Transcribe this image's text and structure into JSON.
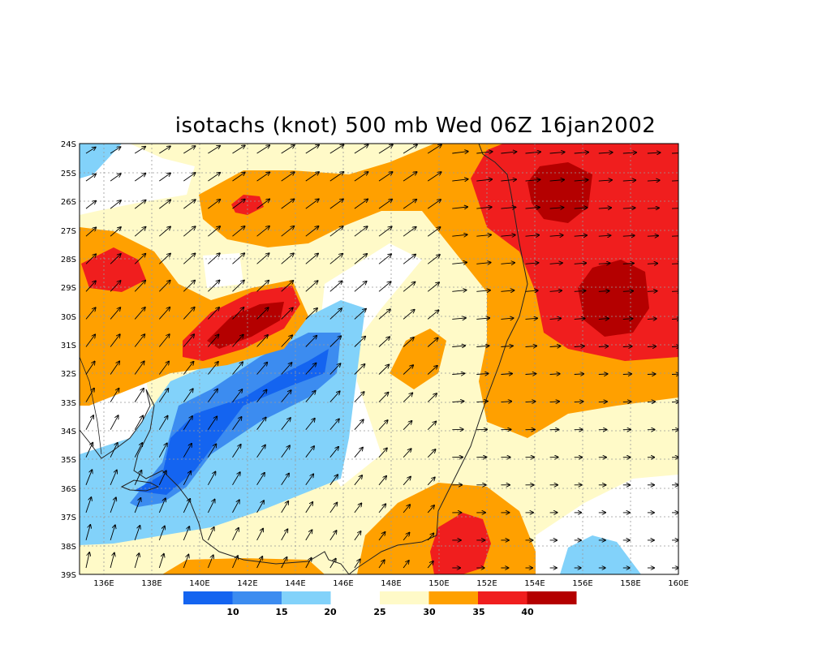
{
  "title": "isotachs (knot) 500 mb Wed 06Z 16jan2002",
  "lat_labels": [
    "24S",
    "25S",
    "26S",
    "27S",
    "28S",
    "29S",
    "30S",
    "31S",
    "32S",
    "33S",
    "34S",
    "35S",
    "36S",
    "37S",
    "38S",
    "39S"
  ],
  "lon_labels": [
    "136E",
    "138E",
    "140E",
    "142E",
    "144E",
    "146E",
    "148E",
    "150E",
    "152E",
    "154E",
    "156E",
    "158E",
    "160E"
  ],
  "colorbar": {
    "colors": [
      "#1464f0",
      "#3c8cf0",
      "#82d2fa",
      "#ffffff",
      "#fffac8",
      "#ffa000",
      "#f01e1e",
      "#b40000"
    ],
    "labels": [
      "10",
      "15",
      "20",
      "25",
      "30",
      "35",
      "40"
    ]
  },
  "palette": {
    "light_blue": "#82d2fa",
    "mid_blue": "#3c8cf0",
    "dark_blue": "#1464f0",
    "white": "#ffffff",
    "pale_yellow": "#fffac8",
    "orange": "#ffa000",
    "red": "#f01e1e",
    "dark_red": "#b40000"
  },
  "map": {
    "lon_range": [
      135,
      160
    ],
    "lat_range": [
      -39,
      -24
    ],
    "field": "wind speed isotachs with wind vectors",
    "units": "knot",
    "level": "500 mb"
  }
}
